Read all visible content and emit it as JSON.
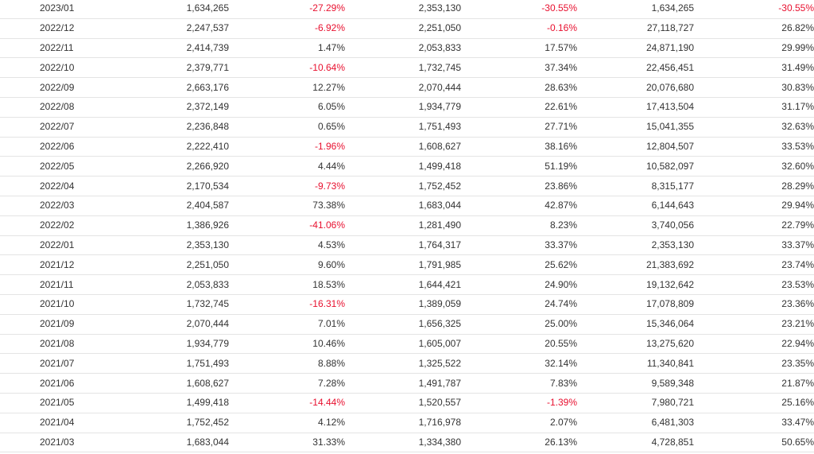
{
  "colors": {
    "text": "#333333",
    "negative": "#e8102f",
    "row_border": "#e4e4e4",
    "background": "#ffffff"
  },
  "table": {
    "rows": [
      [
        "2023/01",
        "1,634,265",
        "-27.29%",
        "2,353,130",
        "-30.55%",
        "1,634,265",
        "-30.55%"
      ],
      [
        "2022/12",
        "2,247,537",
        "-6.92%",
        "2,251,050",
        "-0.16%",
        "27,118,727",
        "26.82%"
      ],
      [
        "2022/11",
        "2,414,739",
        "1.47%",
        "2,053,833",
        "17.57%",
        "24,871,190",
        "29.99%"
      ],
      [
        "2022/10",
        "2,379,771",
        "-10.64%",
        "1,732,745",
        "37.34%",
        "22,456,451",
        "31.49%"
      ],
      [
        "2022/09",
        "2,663,176",
        "12.27%",
        "2,070,444",
        "28.63%",
        "20,076,680",
        "30.83%"
      ],
      [
        "2022/08",
        "2,372,149",
        "6.05%",
        "1,934,779",
        "22.61%",
        "17,413,504",
        "31.17%"
      ],
      [
        "2022/07",
        "2,236,848",
        "0.65%",
        "1,751,493",
        "27.71%",
        "15,041,355",
        "32.63%"
      ],
      [
        "2022/06",
        "2,222,410",
        "-1.96%",
        "1,608,627",
        "38.16%",
        "12,804,507",
        "33.53%"
      ],
      [
        "2022/05",
        "2,266,920",
        "4.44%",
        "1,499,418",
        "51.19%",
        "10,582,097",
        "32.60%"
      ],
      [
        "2022/04",
        "2,170,534",
        "-9.73%",
        "1,752,452",
        "23.86%",
        "8,315,177",
        "28.29%"
      ],
      [
        "2022/03",
        "2,404,587",
        "73.38%",
        "1,683,044",
        "42.87%",
        "6,144,643",
        "29.94%"
      ],
      [
        "2022/02",
        "1,386,926",
        "-41.06%",
        "1,281,490",
        "8.23%",
        "3,740,056",
        "22.79%"
      ],
      [
        "2022/01",
        "2,353,130",
        "4.53%",
        "1,764,317",
        "33.37%",
        "2,353,130",
        "33.37%"
      ],
      [
        "2021/12",
        "2,251,050",
        "9.60%",
        "1,791,985",
        "25.62%",
        "21,383,692",
        "23.74%"
      ],
      [
        "2021/11",
        "2,053,833",
        "18.53%",
        "1,644,421",
        "24.90%",
        "19,132,642",
        "23.53%"
      ],
      [
        "2021/10",
        "1,732,745",
        "-16.31%",
        "1,389,059",
        "24.74%",
        "17,078,809",
        "23.36%"
      ],
      [
        "2021/09",
        "2,070,444",
        "7.01%",
        "1,656,325",
        "25.00%",
        "15,346,064",
        "23.21%"
      ],
      [
        "2021/08",
        "1,934,779",
        "10.46%",
        "1,605,007",
        "20.55%",
        "13,275,620",
        "22.94%"
      ],
      [
        "2021/07",
        "1,751,493",
        "8.88%",
        "1,325,522",
        "32.14%",
        "11,340,841",
        "23.35%"
      ],
      [
        "2021/06",
        "1,608,627",
        "7.28%",
        "1,491,787",
        "7.83%",
        "9,589,348",
        "21.87%"
      ],
      [
        "2021/05",
        "1,499,418",
        "-14.44%",
        "1,520,557",
        "-1.39%",
        "7,980,721",
        "25.16%"
      ],
      [
        "2021/04",
        "1,752,452",
        "4.12%",
        "1,716,978",
        "2.07%",
        "6,481,303",
        "33.47%"
      ],
      [
        "2021/03",
        "1,683,044",
        "31.33%",
        "1,334,380",
        "26.13%",
        "4,728,851",
        "50.65%"
      ]
    ]
  }
}
